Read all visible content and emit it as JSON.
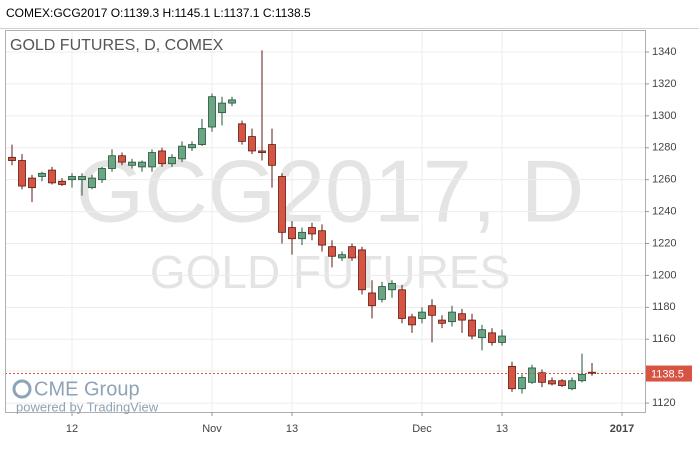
{
  "header": "COMEX:GCG2017 O:1139.3 H:1145.1 L:1137.1 C:1138.5",
  "branding": {
    "logo": "CME Group",
    "powered": "powered by TradingView"
  },
  "chart_data": {
    "type": "candlestick",
    "title": "GOLD FUTURES, D, COMEX",
    "watermark": [
      "GCG2017, D",
      "GOLD FUTURES"
    ],
    "open": [
      1274,
      1272,
      1261,
      1262,
      1266,
      1259,
      1260,
      1260,
      1255,
      1260,
      1267,
      1275,
      1269,
      1268,
      1268,
      1278,
      1270,
      1273,
      1280,
      1282,
      1293,
      1302,
      1308,
      1295,
      1287,
      1278,
      1282,
      1262,
      1230,
      1223,
      1230,
      1228,
      1218,
      1211,
      1218,
      1216,
      1189,
      1185,
      1191,
      1191,
      1174,
      1173,
      1181,
      1172,
      1171,
      1176,
      1172,
      1161,
      1164,
      1158,
      1143,
      1129,
      1133,
      1139,
      1134,
      1134,
      1129,
      1134,
      1139.3
    ],
    "high": [
      1282,
      1276,
      1263,
      1265,
      1268,
      1261,
      1264,
      1264,
      1263,
      1268,
      1279,
      1277,
      1273,
      1272,
      1279,
      1280,
      1276,
      1284,
      1284,
      1298,
      1314,
      1312,
      1312,
      1297,
      1292,
      1341,
      1292,
      1264,
      1234,
      1230,
      1233,
      1232,
      1222,
      1215,
      1220,
      1218,
      1197,
      1196,
      1197,
      1194,
      1176,
      1180,
      1185,
      1175,
      1181,
      1179,
      1176,
      1169,
      1167,
      1166,
      1146,
      1138,
      1144,
      1141,
      1136,
      1135,
      1136,
      1151,
      1145.1
    ],
    "low": [
      1269,
      1254,
      1246,
      1259,
      1257,
      1256,
      1255,
      1250,
      1254,
      1258,
      1265,
      1269,
      1267,
      1265,
      1265,
      1268,
      1268,
      1271,
      1278,
      1281,
      1290,
      1294,
      1306,
      1282,
      1276,
      1272,
      1255,
      1220,
      1213,
      1219,
      1222,
      1215,
      1205,
      1209,
      1209,
      1188,
      1173,
      1183,
      1186,
      1170,
      1164,
      1170,
      1158,
      1167,
      1168,
      1164,
      1160,
      1153,
      1156,
      1156,
      1127,
      1126,
      1132,
      1130,
      1131,
      1130,
      1128,
      1133,
      1137.1
    ],
    "close": [
      1272,
      1256,
      1255,
      1264,
      1258,
      1257,
      1262,
      1262,
      1261,
      1267,
      1275,
      1271,
      1271,
      1271,
      1277,
      1270,
      1274,
      1281,
      1282,
      1292,
      1312,
      1308,
      1310,
      1284,
      1278,
      1277,
      1269,
      1227,
      1223,
      1227,
      1226,
      1219,
      1212,
      1213,
      1211,
      1191,
      1181,
      1193,
      1195,
      1173,
      1169,
      1177,
      1175,
      1170,
      1177,
      1172,
      1162,
      1166,
      1158,
      1162,
      1129,
      1136,
      1142,
      1133,
      1132,
      1131,
      1134,
      1138,
      1138.5
    ],
    "up_color": "#6ba583",
    "down_color": "#d75442",
    "ylim": [
      1114.4,
      1353.8
    ],
    "yticks": [
      1120,
      1140,
      1160,
      1180,
      1200,
      1220,
      1240,
      1260,
      1280,
      1300,
      1320,
      1340
    ],
    "xlim": [
      -0.7,
      63.3
    ],
    "xticks": [
      {
        "value": 6,
        "label": "12"
      },
      {
        "value": 20,
        "label": "Nov"
      },
      {
        "value": 28,
        "label": "13"
      },
      {
        "value": 41,
        "label": "Dec"
      },
      {
        "value": 49,
        "label": "13"
      },
      {
        "value": 61,
        "label": "2017"
      }
    ],
    "grid": true
  }
}
